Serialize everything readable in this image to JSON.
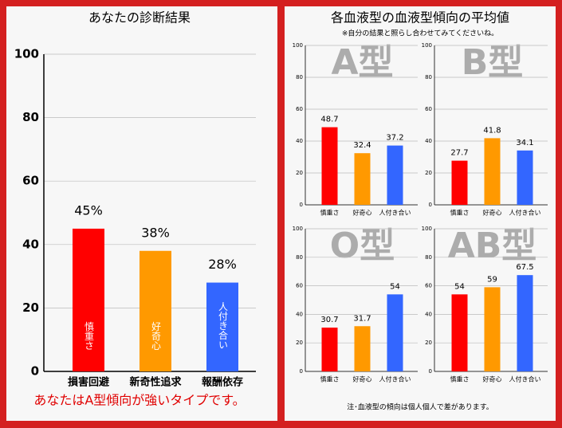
{
  "chart_data": [
    {
      "type": "bar",
      "title": "あなたの診断結果",
      "categories": [
        "損害回避",
        "新奇性追求",
        "報酬依存"
      ],
      "values": [
        45,
        38,
        28
      ],
      "value_labels": [
        "45%",
        "38%",
        "28%"
      ],
      "bar_labels": [
        "慎重さ",
        "好奇心",
        "人付き合い"
      ],
      "colors": [
        "#ff0000",
        "#ff9900",
        "#3366ff"
      ],
      "ylim": [
        0,
        100
      ],
      "yticks": [
        0,
        20,
        40,
        60,
        80,
        100
      ],
      "grid": true,
      "note": "あなたはA型傾向が強いタイプです。"
    },
    {
      "type": "bar",
      "label": "A型",
      "categories": [
        "慎重さ",
        "好奇心",
        "人付き合い"
      ],
      "values": [
        48.7,
        32.4,
        37.2
      ],
      "colors": [
        "#ff0000",
        "#ff9900",
        "#3366ff"
      ],
      "ylim": [
        0,
        100
      ],
      "yticks": [
        0,
        20,
        40,
        60,
        80,
        100
      ],
      "grid": true
    },
    {
      "type": "bar",
      "label": "B型",
      "categories": [
        "慎重さ",
        "好奇心",
        "人付き合い"
      ],
      "values": [
        27.7,
        41.8,
        34.1
      ],
      "colors": [
        "#ff0000",
        "#ff9900",
        "#3366ff"
      ],
      "ylim": [
        0,
        100
      ],
      "yticks": [
        0,
        20,
        40,
        60,
        80,
        100
      ],
      "grid": true
    },
    {
      "type": "bar",
      "label": "O型",
      "categories": [
        "慎重さ",
        "好奇心",
        "人付き合い"
      ],
      "values": [
        30.7,
        31.7,
        54
      ],
      "colors": [
        "#ff0000",
        "#ff9900",
        "#3366ff"
      ],
      "ylim": [
        0,
        100
      ],
      "yticks": [
        0,
        20,
        40,
        60,
        80,
        100
      ],
      "grid": true
    },
    {
      "type": "bar",
      "label": "AB型",
      "categories": [
        "慎重さ",
        "好奇心",
        "人付き合い"
      ],
      "values": [
        54,
        59,
        67.5
      ],
      "colors": [
        "#ff0000",
        "#ff9900",
        "#3366ff"
      ],
      "ylim": [
        0,
        100
      ],
      "yticks": [
        0,
        20,
        40,
        60,
        80,
        100
      ],
      "grid": true
    }
  ],
  "right_panel": {
    "title": "各血液型の血液型傾向の平均値",
    "subtitle": "※自分の結果と照らし合わせてみてくださいね。",
    "note": "注･血液型の傾向は個人個人で差があります。"
  }
}
